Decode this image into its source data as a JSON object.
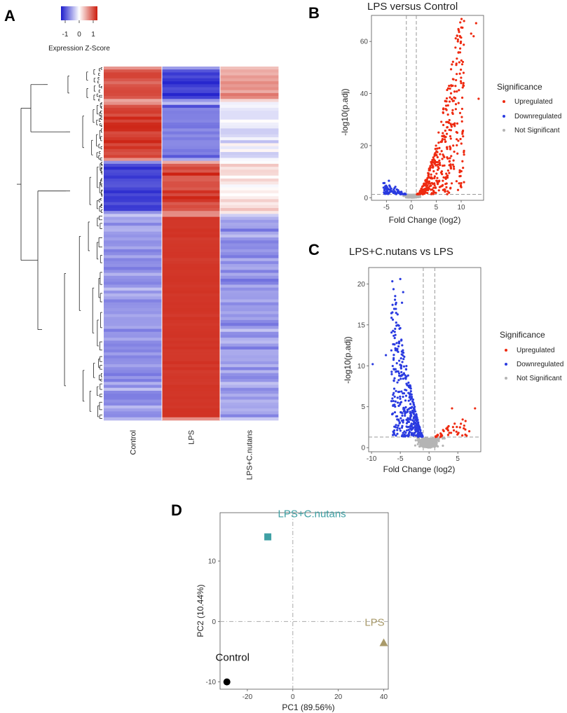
{
  "panels": {
    "a": {
      "letter": "A"
    },
    "b": {
      "letter": "B"
    },
    "c": {
      "letter": "C"
    },
    "d": {
      "letter": "D"
    }
  },
  "chart_data": [
    {
      "type": "heatmap",
      "panel": "A",
      "columns": [
        "Control",
        "LPS",
        "LPS+C.nutans"
      ],
      "colorbar": {
        "title": "Expression Z-Score",
        "ticks": [
          "-1",
          "0",
          "1"
        ],
        "range": [
          -1.3,
          1.3
        ],
        "low_color": "#1c1ccc",
        "mid_color": "#ffffff",
        "high_color": "#cc1c0c"
      },
      "row_clusters": [
        {
          "rows": 12,
          "values": [
            1.0,
            -1.1,
            0.55
          ]
        },
        {
          "rows": 20,
          "values": [
            1.1,
            -0.75,
            -0.15
          ]
        },
        {
          "rows": 18,
          "values": [
            -1.1,
            1.05,
            0.15
          ]
        },
        {
          "rows": 70,
          "values": [
            -0.6,
            1.15,
            -0.55
          ]
        }
      ]
    },
    {
      "type": "scatter",
      "panel": "B",
      "title": "LPS versus Control",
      "xlabel": "Fold Change (log2)",
      "ylabel": "-log10(p.adj)",
      "xlim": [
        -8,
        14.5
      ],
      "ylim": [
        -1,
        70
      ],
      "xticks": [
        "-5",
        "0",
        "5",
        "10"
      ],
      "yticks": [
        "0",
        "20",
        "40",
        "60"
      ],
      "fc_cutoffs": [
        -1,
        1
      ],
      "p_cutoff": 1.3,
      "legend": {
        "title": "Significance",
        "items": [
          "Upregulated",
          "Downregulated",
          "Not Significant"
        ]
      },
      "colors": {
        "up": "#ee2a10",
        "down": "#2a3be0",
        "ns": "#b4b4b4"
      },
      "notable_points": [
        {
          "x": 13.0,
          "y": 67,
          "group": "up"
        },
        {
          "x": 12.0,
          "y": 63,
          "group": "up"
        },
        {
          "x": 12.5,
          "y": 62,
          "group": "up"
        },
        {
          "x": 10.0,
          "y": 44,
          "group": "up"
        },
        {
          "x": 10.5,
          "y": 43,
          "group": "up"
        },
        {
          "x": 13.5,
          "y": 38,
          "group": "up"
        },
        {
          "x": -4.5,
          "y": 6.5,
          "group": "down"
        },
        {
          "x": -3.2,
          "y": 4.2,
          "group": "down"
        }
      ],
      "up_count": 420,
      "down_count": 90,
      "ns_count": 320
    },
    {
      "type": "scatter",
      "panel": "C",
      "title": "LPS+C.nutans vs LPS",
      "xlabel": "Fold Change (log2)",
      "ylabel": "-log10(p.adj)",
      "xlim": [
        -10.5,
        9
      ],
      "ylim": [
        -0.5,
        22
      ],
      "xticks": [
        "-10",
        "-5",
        "0",
        "5"
      ],
      "yticks": [
        "0",
        "5",
        "10",
        "15",
        "20"
      ],
      "fc_cutoffs": [
        -1,
        1
      ],
      "p_cutoff": 1.3,
      "legend": {
        "title": "Significance",
        "items": [
          "Upregulated",
          "Downregulated",
          "Not Significant"
        ]
      },
      "colors": {
        "up": "#ee2a10",
        "down": "#2a3be0",
        "ns": "#b4b4b4"
      },
      "notable_points": [
        {
          "x": -5.0,
          "y": 20.6,
          "group": "down"
        },
        {
          "x": -4.5,
          "y": 19.0,
          "group": "down"
        },
        {
          "x": -4.7,
          "y": 17.7,
          "group": "down"
        },
        {
          "x": -5.0,
          "y": 14.6,
          "group": "down"
        },
        {
          "x": -9.8,
          "y": 10.2,
          "group": "down"
        },
        {
          "x": -7.5,
          "y": 11.3,
          "group": "down"
        },
        {
          "x": 8.0,
          "y": 4.8,
          "group": "up"
        },
        {
          "x": 4.0,
          "y": 4.8,
          "group": "up"
        },
        {
          "x": 7.0,
          "y": 2.0,
          "group": "up"
        }
      ],
      "up_count": 45,
      "down_count": 380,
      "ns_count": 320
    },
    {
      "type": "scatter",
      "panel": "D",
      "xlabel": "PC1  (89.56%)",
      "ylabel": "PC2  (10.44%)",
      "xlim": [
        -32,
        42
      ],
      "ylim": [
        -11.2,
        18
      ],
      "xticks": [
        -20,
        0,
        20,
        40
      ],
      "yticks": [
        -10,
        0,
        10
      ],
      "points": [
        {
          "label": "Control",
          "x": -29,
          "y": -10,
          "shape": "circle",
          "color": "#000000",
          "label_color": "#111111"
        },
        {
          "label": "LPS+C.nutans",
          "x": -11,
          "y": 14,
          "shape": "square",
          "color": "#3fa0a4",
          "label_color": "#3fa0a4"
        },
        {
          "label": "LPS",
          "x": 40,
          "y": -3.5,
          "shape": "triangle",
          "color": "#a99a6a",
          "label_color": "#a99a6a"
        }
      ]
    }
  ]
}
